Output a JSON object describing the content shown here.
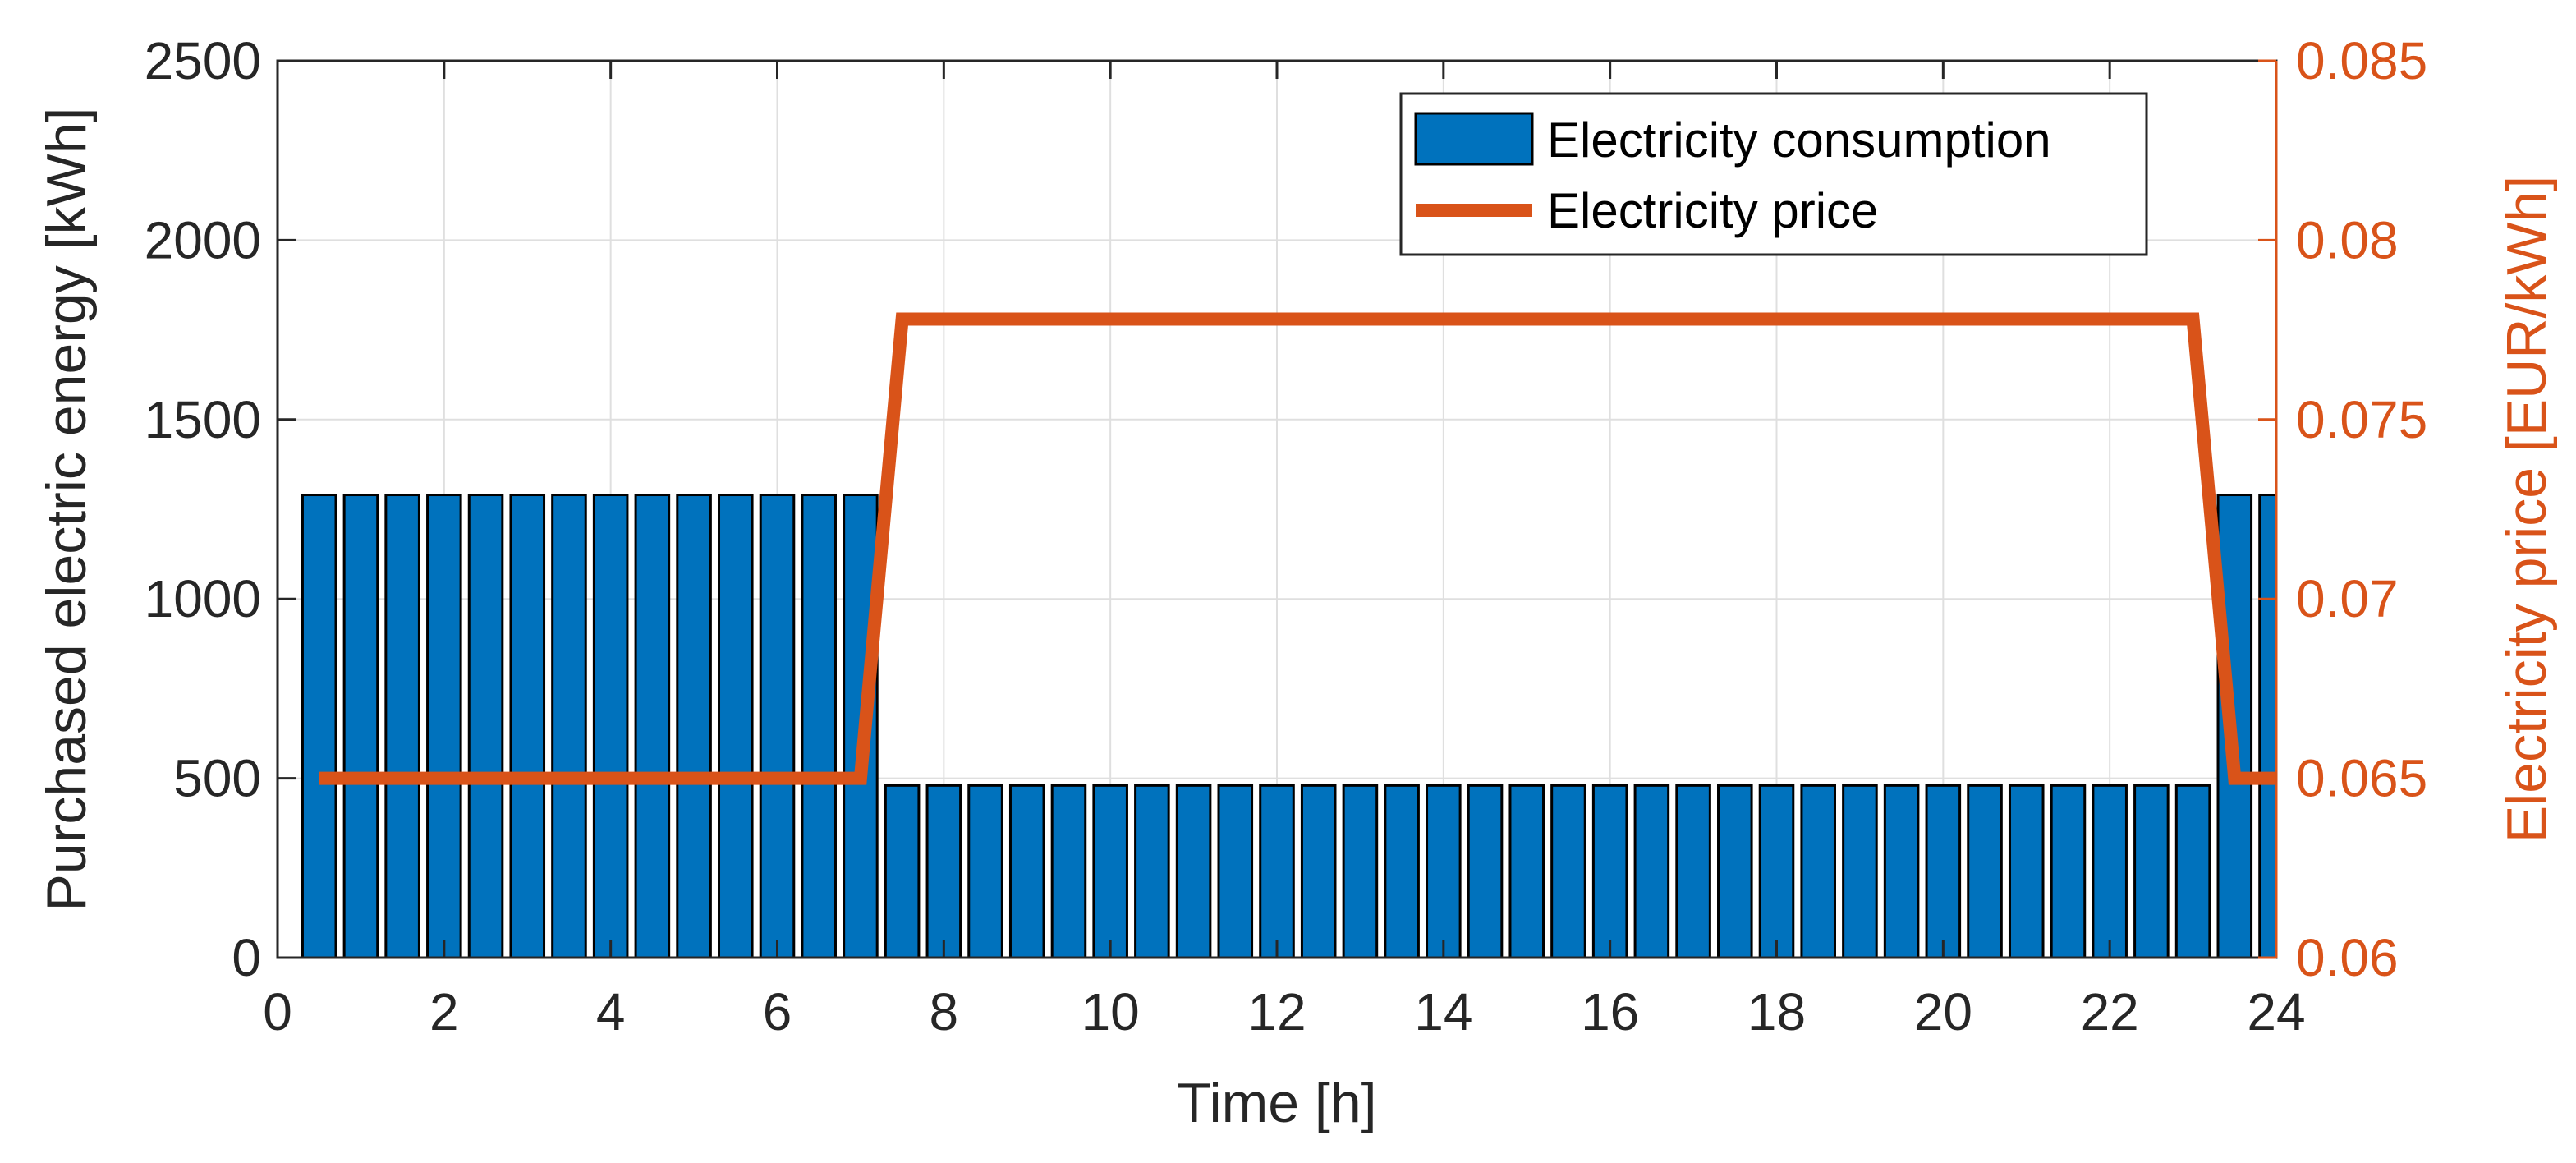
{
  "chart_data": {
    "type": "bar",
    "title": "",
    "xlabel": "Time [h]",
    "ylabel_left": "Purchased electric energy [kWh]",
    "ylabel_right": "Electricity price [EUR/kWh]",
    "xlim": [
      0,
      24
    ],
    "ylim_left": [
      0,
      2500
    ],
    "ylim_right": [
      0.06,
      0.085
    ],
    "grid": true,
    "legend_position": "top-right",
    "x_ticks": [
      "0",
      "2",
      "4",
      "6",
      "8",
      "10",
      "12",
      "14",
      "16",
      "18",
      "20",
      "22",
      "24"
    ],
    "y_ticks_left": [
      "0",
      "500",
      "1000",
      "1500",
      "2000",
      "2500"
    ],
    "y_ticks_right": [
      "0.06",
      "0.065",
      "0.07",
      "0.075",
      "0.08",
      "0.085"
    ],
    "series": [
      {
        "name": "Electricity consumption",
        "type": "bar",
        "axis": "left",
        "color": "#0072BD",
        "x": [
          0.5,
          1.0,
          1.5,
          2.0,
          2.5,
          3.0,
          3.5,
          4.0,
          4.5,
          5.0,
          5.5,
          6.0,
          6.5,
          7.0,
          7.5,
          8.0,
          8.5,
          9.0,
          9.5,
          10.0,
          10.5,
          11.0,
          11.5,
          12.0,
          12.5,
          13.0,
          13.5,
          14.0,
          14.5,
          15.0,
          15.5,
          16.0,
          16.5,
          17.0,
          17.5,
          18.0,
          18.5,
          19.0,
          19.5,
          20.0,
          20.5,
          21.0,
          21.5,
          22.0,
          22.5,
          23.0,
          23.5,
          24.0
        ],
        "values": [
          1290,
          1290,
          1290,
          1290,
          1290,
          1290,
          1290,
          1290,
          1290,
          1290,
          1290,
          1290,
          1290,
          1290,
          480,
          480,
          480,
          480,
          480,
          480,
          480,
          480,
          480,
          480,
          480,
          480,
          480,
          480,
          480,
          480,
          480,
          480,
          480,
          480,
          480,
          480,
          480,
          480,
          480,
          480,
          480,
          480,
          480,
          480,
          480,
          480,
          1290,
          1290
        ]
      },
      {
        "name": "Electricity price",
        "type": "line",
        "axis": "right",
        "color": "#D95319",
        "x": [
          0.5,
          7.0,
          7.5,
          23.0,
          23.5,
          24.0
        ],
        "values": [
          0.065,
          0.065,
          0.0778,
          0.0778,
          0.065,
          0.065
        ]
      }
    ]
  }
}
